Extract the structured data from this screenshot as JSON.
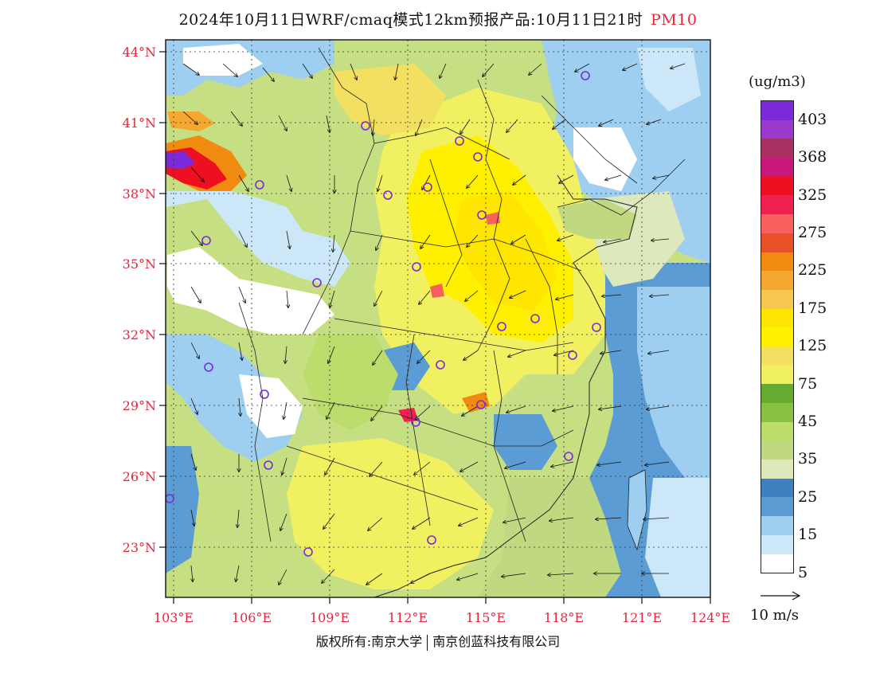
{
  "title": {
    "main": "2024年10月11日WRF/cmaq模式12km预报产品:10月11日21时",
    "pollutant": "PM10"
  },
  "lat_labels": [
    "44°N",
    "41°N",
    "38°N",
    "35°N",
    "32°N",
    "29°N",
    "26°N",
    "23°N"
  ],
  "lon_labels": [
    "103°E",
    "106°E",
    "109°E",
    "112°E",
    "115°E",
    "118°E",
    "121°E",
    "124°E"
  ],
  "colorbar": {
    "unit": "(ug/m3)",
    "labels": [
      "403",
      "368",
      "325",
      "275",
      "225",
      "175",
      "125",
      "75",
      "45",
      "35",
      "25",
      "15",
      "5"
    ],
    "colors": [
      "#7a2ad9",
      "#9a3acc",
      "#a83060",
      "#c8187a",
      "#ee1020",
      "#f02050",
      "#f86060",
      "#e85028",
      "#f08a10",
      "#f4a830",
      "#f6c850",
      "#ffe600",
      "#fff000",
      "#f4e060",
      "#f0f060",
      "#66aa33",
      "#88c040",
      "#bcdc6c",
      "#c0d880",
      "#dde8bc",
      "#3f80c0",
      "#5c9cd4",
      "#9ecff0",
      "#cce8f8",
      "#ffffff"
    ]
  },
  "wind_reference": {
    "label": "10 m/s"
  },
  "copyright": {
    "left": "版权所有:南京大学",
    "right": "南京创蓝科技有限公司"
  },
  "cities": [
    "",
    "",
    "",
    "",
    "",
    "",
    "",
    "",
    "",
    "",
    "",
    "",
    "",
    "",
    "",
    "",
    "",
    "",
    "",
    "",
    "",
    "",
    ""
  ]
}
